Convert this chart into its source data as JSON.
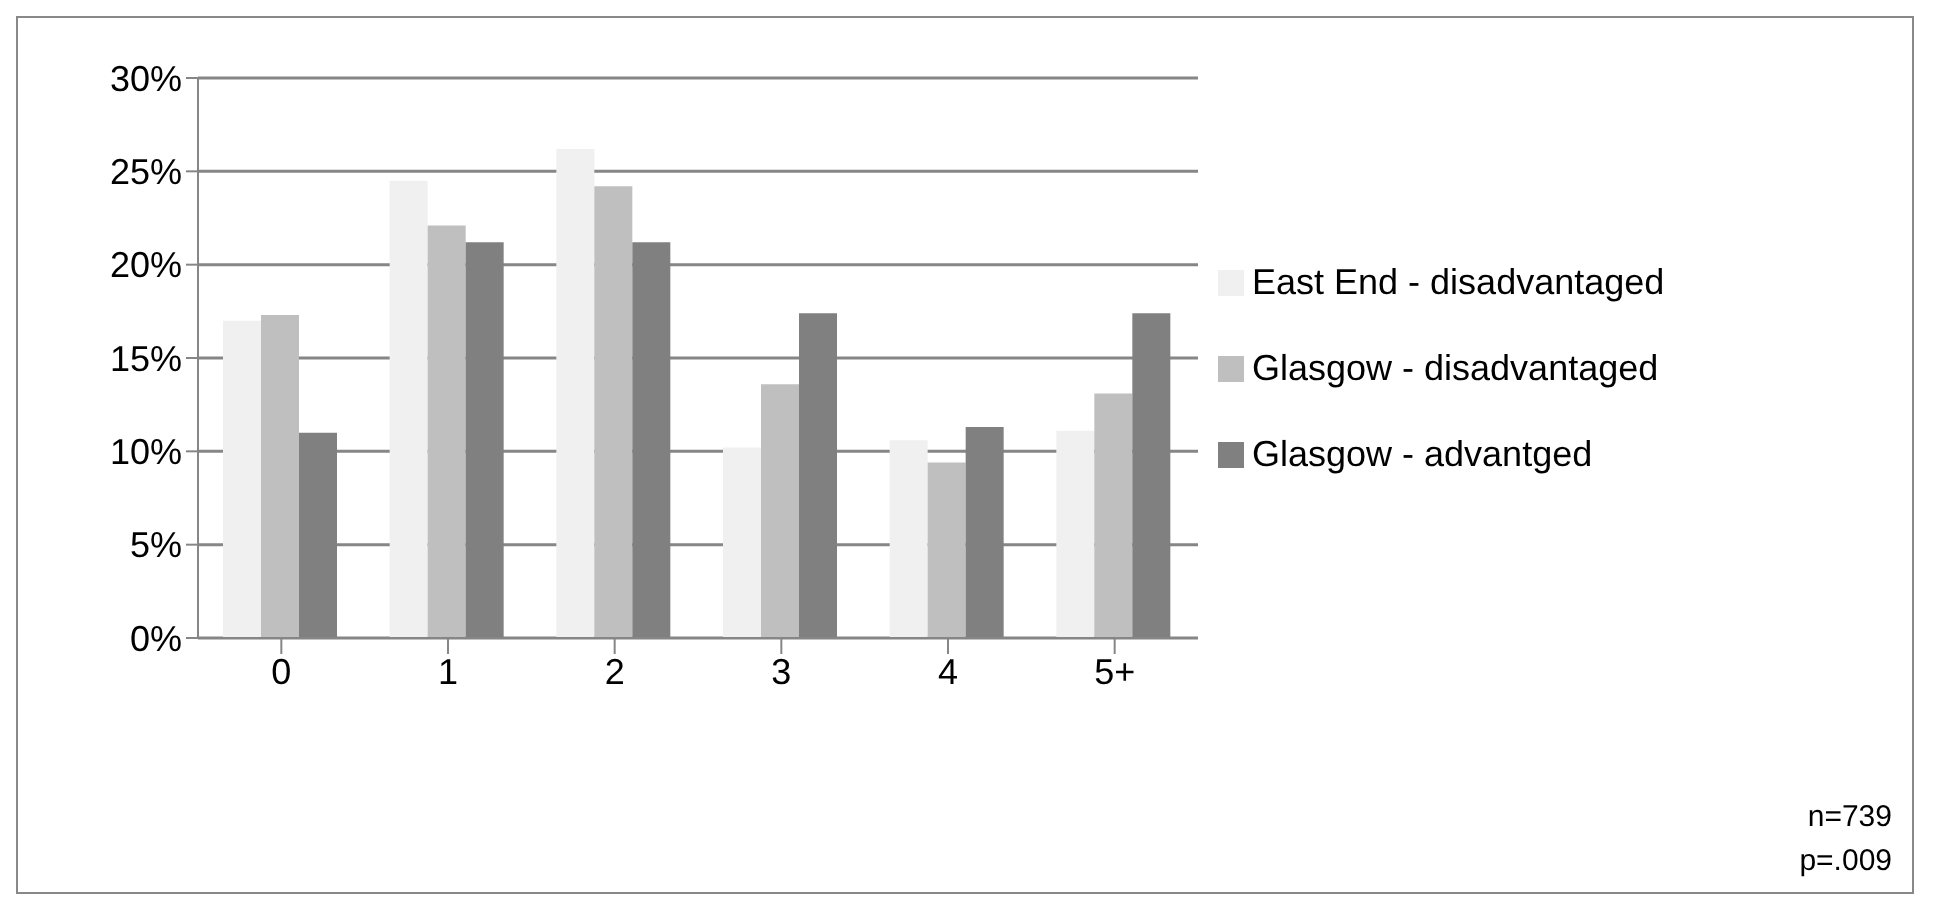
{
  "chart_data": {
    "type": "bar",
    "categories": [
      "0",
      "1",
      "2",
      "3",
      "4",
      "5+"
    ],
    "series": [
      {
        "name": "East End - disadvantaged",
        "color": "#f0f0f0",
        "values": [
          17.0,
          24.5,
          26.2,
          10.2,
          10.6,
          11.1
        ]
      },
      {
        "name": "Glasgow - disadvantaged",
        "color": "#bfbfbf",
        "values": [
          17.3,
          22.1,
          24.2,
          13.6,
          9.4,
          13.1
        ]
      },
      {
        "name": "Glasgow - advantged",
        "color": "#808080",
        "values": [
          11.0,
          21.2,
          21.2,
          17.4,
          11.3,
          17.4
        ]
      }
    ],
    "ylim": [
      0,
      30
    ],
    "yticks": [
      {
        "value": 0,
        "label": "0%"
      },
      {
        "value": 5,
        "label": "5%"
      },
      {
        "value": 10,
        "label": "10%"
      },
      {
        "value": 15,
        "label": "15%"
      },
      {
        "value": 20,
        "label": "20%"
      },
      {
        "value": 25,
        "label": "25%"
      },
      {
        "value": 30,
        "label": "30%"
      }
    ],
    "grid": "y",
    "legend": "right",
    "annotations": [
      "n=739",
      "p=.009"
    ]
  }
}
